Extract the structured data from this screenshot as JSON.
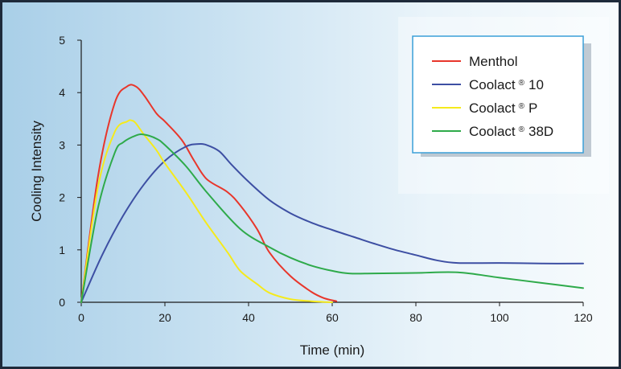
{
  "chart_data": {
    "type": "line",
    "title": "",
    "xlabel": "Time (min)",
    "ylabel": "Cooling Intensity",
    "xlim": [
      0,
      120
    ],
    "ylim": [
      0,
      5
    ],
    "xticks": [
      0,
      20,
      40,
      60,
      80,
      100,
      120
    ],
    "yticks": [
      0,
      1,
      2,
      3,
      4,
      5
    ],
    "grid": false,
    "legend_position": "top-right",
    "series": [
      {
        "name": "Menthol",
        "legend_main": "Menthol",
        "legend_sup": "",
        "legend_suffix": "",
        "color": "#e8362b",
        "x": [
          0,
          4,
          8,
          11,
          13,
          15,
          18,
          20,
          24,
          27,
          30,
          35,
          38,
          42,
          45,
          50,
          55,
          58,
          61
        ],
        "y": [
          0,
          2.4,
          3.8,
          4.12,
          4.12,
          3.95,
          3.6,
          3.45,
          3.1,
          2.7,
          2.35,
          2.1,
          1.85,
          1.4,
          0.95,
          0.5,
          0.2,
          0.08,
          0.02
        ]
      },
      {
        "name": "Coolact ® 10",
        "legend_main": "Coolact",
        "legend_sup": "®",
        "legend_suffix": "10",
        "color": "#3d4fa3",
        "x": [
          0,
          5,
          10,
          15,
          20,
          25,
          28,
          30,
          33,
          36,
          40,
          45,
          50,
          55,
          60,
          65,
          70,
          75,
          80,
          85,
          90,
          100,
          110,
          120
        ],
        "y": [
          0,
          0.9,
          1.65,
          2.25,
          2.7,
          2.97,
          3.02,
          3.0,
          2.88,
          2.62,
          2.3,
          1.95,
          1.7,
          1.52,
          1.38,
          1.25,
          1.12,
          1.0,
          0.9,
          0.8,
          0.75,
          0.75,
          0.74,
          0.74
        ]
      },
      {
        "name": "Coolact ® P",
        "legend_main": "Coolact",
        "legend_sup": "®",
        "legend_suffix": "P",
        "color": "#f5ea1c",
        "x": [
          0,
          4,
          8,
          11,
          12,
          13,
          15,
          18,
          20,
          25,
          30,
          35,
          38,
          42,
          45,
          50,
          55,
          60
        ],
        "y": [
          0,
          2.2,
          3.25,
          3.45,
          3.47,
          3.42,
          3.2,
          2.9,
          2.65,
          2.1,
          1.5,
          0.95,
          0.6,
          0.35,
          0.18,
          0.06,
          0.02,
          0.0
        ]
      },
      {
        "name": "Coolact ® 38D",
        "legend_main": "Coolact",
        "legend_sup": "®",
        "legend_suffix": "38D",
        "color": "#2eaa4a",
        "x": [
          0,
          4,
          8,
          10,
          13,
          15,
          18,
          20,
          25,
          30,
          38,
          45,
          50,
          55,
          60,
          64,
          70,
          80,
          90,
          100,
          110,
          120
        ],
        "y": [
          0,
          1.8,
          2.85,
          3.05,
          3.18,
          3.2,
          3.12,
          3.0,
          2.6,
          2.1,
          1.4,
          1.05,
          0.85,
          0.7,
          0.6,
          0.55,
          0.55,
          0.56,
          0.57,
          0.47,
          0.37,
          0.27
        ]
      }
    ]
  }
}
